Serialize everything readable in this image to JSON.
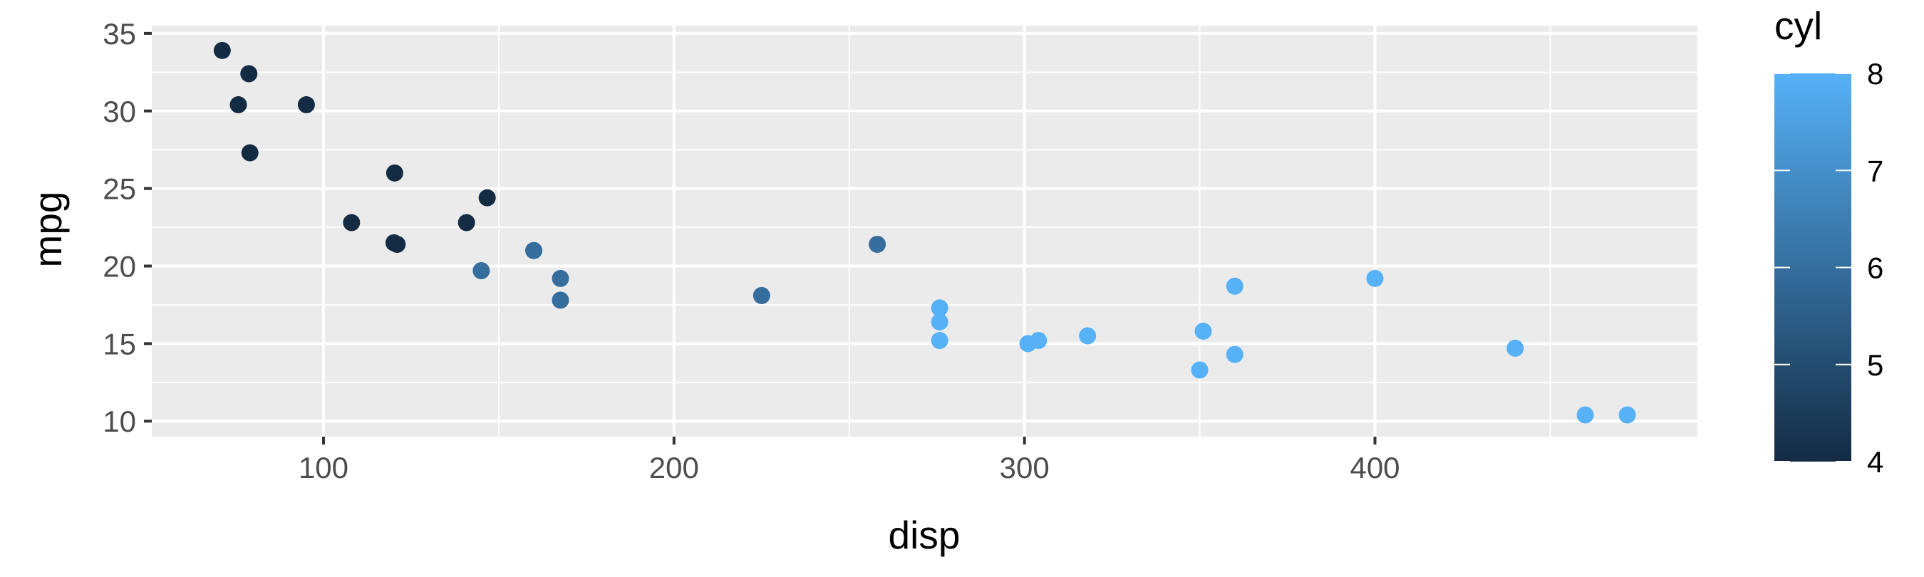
{
  "chart_data": {
    "type": "scatter",
    "xlabel": "disp",
    "ylabel": "mpg",
    "xlim": [
      51,
      492
    ],
    "ylim": [
      9,
      35.5
    ],
    "x_ticks": [
      100,
      200,
      300,
      400
    ],
    "x_tick_labels": [
      "100",
      "200",
      "300",
      "400"
    ],
    "y_ticks": [
      10,
      15,
      20,
      25,
      30,
      35
    ],
    "y_tick_labels": [
      "10",
      "15",
      "20",
      "25",
      "30",
      "35"
    ],
    "grid": true,
    "color_variable": "cyl",
    "color_scale": {
      "title": "cyl",
      "min": 4,
      "max": 8,
      "low_color": "#132B43",
      "high_color": "#56B1F7",
      "ticks": [
        4,
        5,
        6,
        7,
        8
      ],
      "tick_labels": [
        "4",
        "5",
        "6",
        "7",
        "8"
      ],
      "position": "right"
    },
    "points": [
      {
        "x": 160,
        "y": 21.0,
        "cyl": 6
      },
      {
        "x": 160,
        "y": 21.0,
        "cyl": 6
      },
      {
        "x": 108,
        "y": 22.8,
        "cyl": 4
      },
      {
        "x": 258,
        "y": 21.4,
        "cyl": 6
      },
      {
        "x": 360,
        "y": 18.7,
        "cyl": 8
      },
      {
        "x": 225,
        "y": 18.1,
        "cyl": 6
      },
      {
        "x": 360,
        "y": 14.3,
        "cyl": 8
      },
      {
        "x": 146.7,
        "y": 24.4,
        "cyl": 4
      },
      {
        "x": 140.8,
        "y": 22.8,
        "cyl": 4
      },
      {
        "x": 167.6,
        "y": 19.2,
        "cyl": 6
      },
      {
        "x": 167.6,
        "y": 17.8,
        "cyl": 6
      },
      {
        "x": 275.8,
        "y": 16.4,
        "cyl": 8
      },
      {
        "x": 275.8,
        "y": 17.3,
        "cyl": 8
      },
      {
        "x": 275.8,
        "y": 15.2,
        "cyl": 8
      },
      {
        "x": 472,
        "y": 10.4,
        "cyl": 8
      },
      {
        "x": 460,
        "y": 10.4,
        "cyl": 8
      },
      {
        "x": 440,
        "y": 14.7,
        "cyl": 8
      },
      {
        "x": 78.7,
        "y": 32.4,
        "cyl": 4
      },
      {
        "x": 75.7,
        "y": 30.4,
        "cyl": 4
      },
      {
        "x": 71.1,
        "y": 33.9,
        "cyl": 4
      },
      {
        "x": 120.1,
        "y": 21.5,
        "cyl": 4
      },
      {
        "x": 318,
        "y": 15.5,
        "cyl": 8
      },
      {
        "x": 304,
        "y": 15.2,
        "cyl": 8
      },
      {
        "x": 350,
        "y": 13.3,
        "cyl": 8
      },
      {
        "x": 400,
        "y": 19.2,
        "cyl": 8
      },
      {
        "x": 79,
        "y": 27.3,
        "cyl": 4
      },
      {
        "x": 120.3,
        "y": 26.0,
        "cyl": 4
      },
      {
        "x": 95.1,
        "y": 30.4,
        "cyl": 4
      },
      {
        "x": 351,
        "y": 15.8,
        "cyl": 8
      },
      {
        "x": 145,
        "y": 19.7,
        "cyl": 6
      },
      {
        "x": 301,
        "y": 15.0,
        "cyl": 8
      },
      {
        "x": 121,
        "y": 21.4,
        "cyl": 4
      }
    ]
  }
}
